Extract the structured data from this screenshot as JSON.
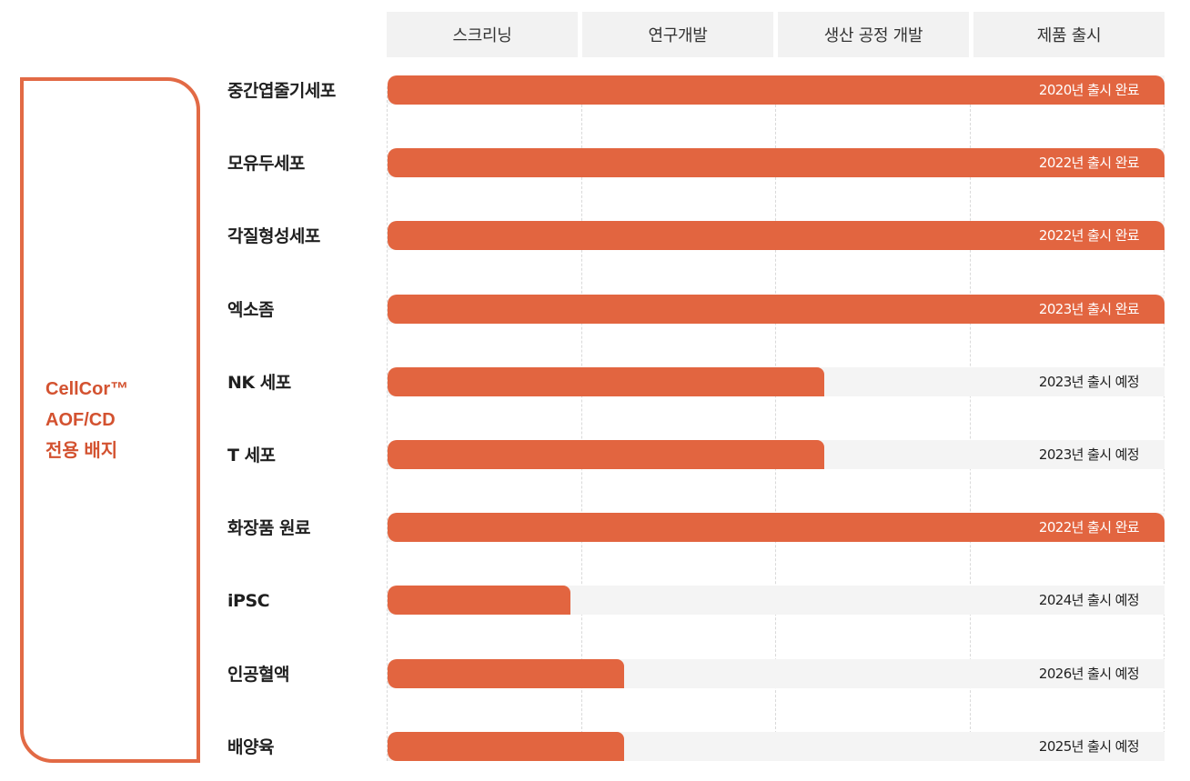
{
  "stages": [
    "스크리닝",
    "연구개발",
    "생산 공정 개발",
    "제품 출시"
  ],
  "side_panel": {
    "lines": [
      "CellCor™",
      "AOF/CD",
      "전용 배지"
    ]
  },
  "colors": {
    "accent": "#e26540",
    "border": "#e26a45",
    "label_accent": "#d35230",
    "track": "#f4f4f4",
    "header_bg": "#f2f2f2"
  },
  "chart_data": {
    "type": "bar",
    "orientation": "horizontal",
    "x_stages": [
      "스크리닝",
      "연구개발",
      "생산 공정 개발",
      "제품 출시"
    ],
    "xlim": [
      0,
      4
    ],
    "categories": [
      "중간엽줄기세포",
      "모유두세포",
      "각질형성세포",
      "엑소좀",
      "NK 세포",
      "T 세포",
      "화장품 원료",
      "iPSC",
      "인공혈액",
      "배양육"
    ],
    "values": [
      4,
      4,
      4,
      4,
      2.25,
      2.25,
      4,
      0.94,
      1.22,
      1.22
    ],
    "status_labels": [
      "2020년 출시 완료",
      "2022년 출시 완료",
      "2022년 출시 완료",
      "2023년 출시 완료",
      "2023년 출시 예정",
      "2023년 출시 예정",
      "2022년 출시 완료",
      "2024년 출시 예정",
      "2026년 출시 예정",
      "2025년 출시 예정"
    ],
    "grid": true
  }
}
